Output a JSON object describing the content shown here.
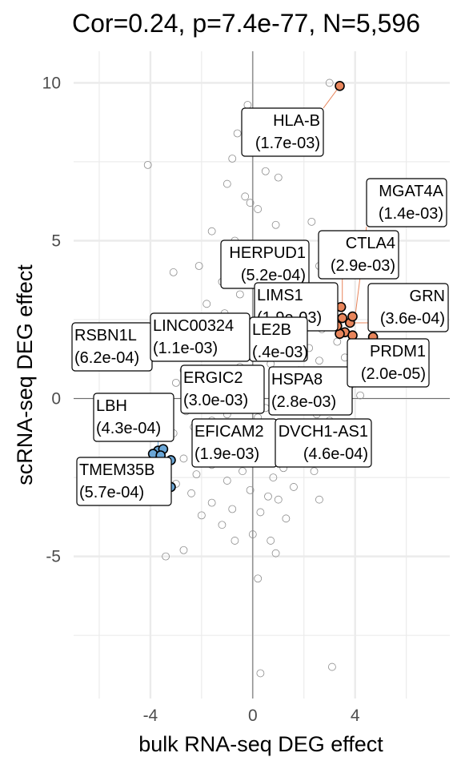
{
  "chart_data": {
    "type": "scatter",
    "title": "Cor=0.24, p=7.4e-77, N=5,596",
    "xlabel": "bulk RNA-seq DEG effect",
    "ylabel": "scRNA-seq DEG effect",
    "xlim": [
      -7.0,
      7.7
    ],
    "ylim": [
      -9.5,
      11.0
    ],
    "xticks": [
      -4,
      0,
      4
    ],
    "yticks": [
      -5,
      0,
      5,
      10
    ],
    "grid": true,
    "zero_lines": true,
    "colors": {
      "background_point_stroke": "#8c8c8c",
      "up": "#e8855b",
      "down": "#6aa6d6",
      "grid": "#ebebeb",
      "zero_line": "#6e6e6e"
    },
    "background_points": [
      [
        3.0,
        10.0
      ],
      [
        -0.2,
        9.3
      ],
      [
        -0.6,
        8.4
      ],
      [
        0.3,
        8.1
      ],
      [
        -0.8,
        7.6
      ],
      [
        -4.1,
        7.4
      ],
      [
        0.5,
        7.2
      ],
      [
        -1.0,
        6.8
      ],
      [
        1.0,
        7.0
      ],
      [
        -0.3,
        6.4
      ],
      [
        -0.1,
        6.2
      ],
      [
        0.2,
        6.0
      ],
      [
        2.3,
        5.6
      ],
      [
        0.9,
        5.5
      ],
      [
        -1.6,
        5.3
      ],
      [
        -0.7,
        5.0
      ],
      [
        0.4,
        4.9
      ],
      [
        1.2,
        4.6
      ],
      [
        -2.1,
        4.2
      ],
      [
        2.6,
        4.2
      ],
      [
        0.1,
        4.1
      ],
      [
        -3.1,
        4.0
      ],
      [
        1.6,
        3.9
      ],
      [
        -1.2,
        3.7
      ],
      [
        0.8,
        3.5
      ],
      [
        2.0,
        3.4
      ],
      [
        -0.5,
        3.3
      ],
      [
        1.4,
        3.1
      ],
      [
        -1.8,
        3.0
      ],
      [
        2.4,
        2.9
      ],
      [
        0.6,
        2.8
      ],
      [
        -1.1,
        2.7
      ],
      [
        3.0,
        2.6
      ],
      [
        1.9,
        2.5
      ],
      [
        -0.2,
        2.4
      ],
      [
        -2.4,
        2.3
      ],
      [
        2.7,
        2.2
      ],
      [
        0.9,
        2.1
      ],
      [
        -1.5,
        2.0
      ],
      [
        1.6,
        1.9
      ],
      [
        3.3,
        1.8
      ],
      [
        -0.9,
        1.7
      ],
      [
        2.2,
        1.6
      ],
      [
        0.3,
        1.5
      ],
      [
        -2.0,
        1.5
      ],
      [
        1.1,
        1.4
      ],
      [
        3.6,
        1.3
      ],
      [
        -1.3,
        1.3
      ],
      [
        2.6,
        1.2
      ],
      [
        0.7,
        1.1
      ],
      [
        -0.5,
        1.0
      ],
      [
        1.8,
        0.9
      ],
      [
        -2.7,
        0.9
      ],
      [
        3.1,
        0.8
      ],
      [
        0.0,
        0.7
      ],
      [
        -1.7,
        0.7
      ],
      [
        2.3,
        0.6
      ],
      [
        1.2,
        0.5
      ],
      [
        -3.0,
        0.5
      ],
      [
        3.8,
        0.4
      ],
      [
        -0.8,
        0.4
      ],
      [
        0.9,
        0.3
      ],
      [
        -2.2,
        0.3
      ],
      [
        2.8,
        0.2
      ],
      [
        -1.4,
        0.2
      ],
      [
        4.2,
        0.1
      ],
      [
        1.5,
        0.1
      ],
      [
        -3.4,
        -0.1
      ],
      [
        -0.6,
        -0.1
      ],
      [
        2.0,
        -0.2
      ],
      [
        -1.9,
        -0.2
      ],
      [
        3.4,
        -0.3
      ],
      [
        0.5,
        -0.3
      ],
      [
        -2.6,
        -0.4
      ],
      [
        1.7,
        -0.4
      ],
      [
        -1.0,
        -0.5
      ],
      [
        2.5,
        -0.5
      ],
      [
        -3.7,
        -0.6
      ],
      [
        0.2,
        -0.6
      ],
      [
        -1.6,
        -0.7
      ],
      [
        3.0,
        -0.7
      ],
      [
        1.0,
        -0.8
      ],
      [
        -2.3,
        -0.9
      ],
      [
        2.1,
        -1.0
      ],
      [
        -0.4,
        -1.0
      ],
      [
        -3.1,
        -1.1
      ],
      [
        1.4,
        -1.2
      ],
      [
        -1.3,
        -1.3
      ],
      [
        2.8,
        -1.4
      ],
      [
        -2.0,
        -1.5
      ],
      [
        0.6,
        -1.6
      ],
      [
        -0.9,
        -1.7
      ],
      [
        1.9,
        -1.8
      ],
      [
        -2.7,
        -1.9
      ],
      [
        0.1,
        -2.0
      ],
      [
        -1.6,
        -2.1
      ],
      [
        1.2,
        -2.2
      ],
      [
        -0.4,
        -2.3
      ],
      [
        2.4,
        -2.3
      ],
      [
        -2.2,
        -2.4
      ],
      [
        0.8,
        -2.5
      ],
      [
        -1.0,
        -2.6
      ],
      [
        -3.0,
        -2.7
      ],
      [
        1.6,
        -2.8
      ],
      [
        -0.1,
        -2.9
      ],
      [
        -2.4,
        -3.0
      ],
      [
        0.6,
        -3.1
      ],
      [
        1.0,
        -3.2
      ],
      [
        -1.6,
        -3.3
      ],
      [
        2.6,
        -3.2
      ],
      [
        -0.8,
        -3.5
      ],
      [
        0.3,
        -3.6
      ],
      [
        -2.0,
        -3.7
      ],
      [
        1.3,
        -3.8
      ],
      [
        -1.2,
        -4.0
      ],
      [
        0.0,
        -4.3
      ],
      [
        0.7,
        -4.5
      ],
      [
        -0.7,
        -4.5
      ],
      [
        -2.7,
        -4.8
      ],
      [
        0.9,
        -4.9
      ],
      [
        -3.4,
        -5.0
      ],
      [
        0.2,
        -5.7
      ],
      [
        3.1,
        -8.5
      ],
      [
        0.3,
        -8.7
      ]
    ],
    "highlight_up": [
      [
        3.4,
        9.9
      ],
      [
        4.7,
        1.95
      ],
      [
        3.8,
        2.4
      ],
      [
        3.45,
        2.9
      ],
      [
        3.9,
        2.6
      ],
      [
        3.5,
        2.55
      ],
      [
        3.6,
        2.1
      ],
      [
        3.4,
        2.05
      ],
      [
        3.9,
        2.0
      ],
      [
        3.3,
        2.3
      ]
    ],
    "highlight_down": [
      [
        -3.7,
        -1.65
      ],
      [
        -3.9,
        -1.75
      ],
      [
        -3.5,
        -1.6
      ],
      [
        -3.2,
        -1.95
      ],
      [
        -3.35,
        -2.7
      ],
      [
        -3.2,
        -2.8
      ],
      [
        -3.6,
        -1.8
      ]
    ],
    "labels": [
      {
        "gene": "HLA-B",
        "pval": "(1.7e-03)"
      },
      {
        "gene": "MGAT4A",
        "pval": "(1.4e-03)"
      },
      {
        "gene": "CTLA4",
        "pval": "(2.9e-03)"
      },
      {
        "gene": "HERPUD1",
        "pval": "(5.2e-04)"
      },
      {
        "gene": "LIMS1",
        "pval": "(1.9e-03)"
      },
      {
        "gene": "GRN",
        "pval": "(3.6e-04)"
      },
      {
        "gene": "RSBN1L",
        "pval": "(6.2e-04)"
      },
      {
        "gene": "LINC00324",
        "pval": "(1.1e-03)"
      },
      {
        "gene": "LBH",
        "pval": "(4.3e-04)"
      },
      {
        "gene": "ERGIC2",
        "pval": "(3.0e-03)"
      },
      {
        "gene": "HSPA8",
        "pval": "(2.8e-03)"
      },
      {
        "gene": "PRDM1",
        "pval": "(2.0e-05)"
      },
      {
        "gene": "TMEM35B",
        "pval": "(5.7e-04)"
      },
      {
        "gene": "EFICAM2",
        "pval": "(1.9e-03)"
      },
      {
        "gene": "DVCH1-AS1",
        "pval": "(4.6e-04)"
      },
      {
        "gene": "LE2B",
        "pval": "(.4e-03)"
      }
    ]
  }
}
